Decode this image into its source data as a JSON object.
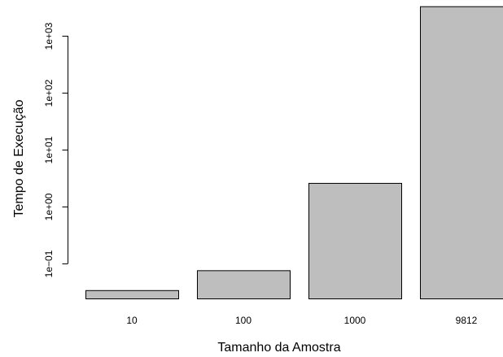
{
  "chart_data": {
    "type": "bar",
    "categories": [
      "10",
      "100",
      "1000",
      "9812"
    ],
    "values": [
      0.034,
      0.076,
      2.6,
      3300
    ],
    "xlabel": "Tamanho da Amostra",
    "ylabel": "Tempo de Execução",
    "yscale": "log",
    "yticks": [
      0.1,
      1,
      10,
      100,
      1000
    ],
    "ytick_labels": [
      "1e−01",
      "1e+00",
      "1e+01",
      "1e+02",
      "1e+03"
    ],
    "ylim": [
      0.03,
      3300
    ],
    "grid": false,
    "bar_color": "#bebebe"
  }
}
